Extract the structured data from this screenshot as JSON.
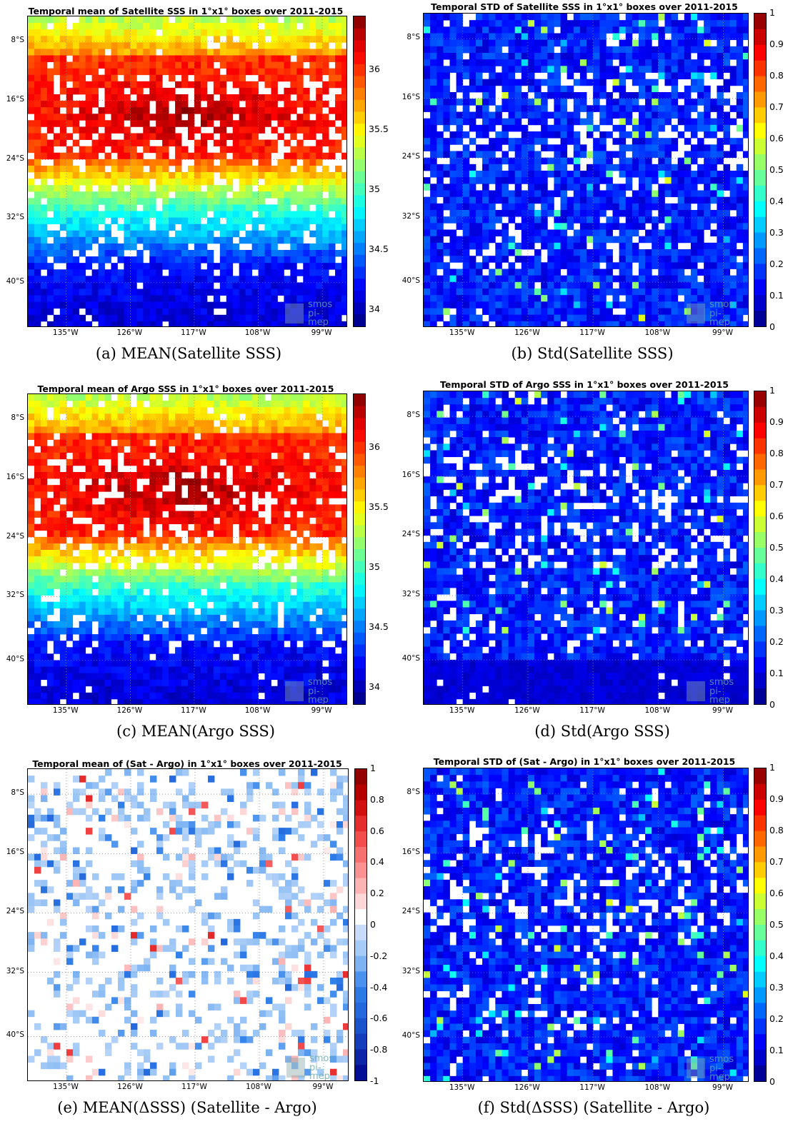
{
  "chart_data": [
    {
      "id": "a",
      "type": "heatmap",
      "title": "Temporal mean of Satellite SSS in 1°x1° boxes over 2011-2015",
      "caption": "(a) MEAN(Satellite SSS)",
      "colorbar_ticks": [
        "36",
        "35.5",
        "35",
        "34.5",
        "34"
      ],
      "x_ticks": [
        "135°W",
        "126°W",
        "117°W",
        "108°W",
        "99°W"
      ],
      "y_ticks": [
        "8°S",
        "16°S",
        "24°S",
        "32°S",
        "40°S"
      ],
      "clim": [
        33.85,
        36.45
      ],
      "colormap": "jet",
      "watermark": [
        "smos",
        "pi-mep"
      ]
    },
    {
      "id": "b",
      "type": "heatmap",
      "title": "Temporal STD of Satellite SSS in 1°x1° boxes over 2011-2015",
      "caption": "(b) Std(Satellite SSS)",
      "colorbar_ticks": [
        "1",
        "0.9",
        "0.8",
        "0.7",
        "0.6",
        "0.5",
        "0.4",
        "0.3",
        "0.2",
        "0.1",
        "0"
      ],
      "x_ticks": [
        "135°W",
        "126°W",
        "117°W",
        "108°W",
        "99°W"
      ],
      "y_ticks": [
        "8°S",
        "16°S",
        "24°S",
        "32°S",
        "40°S"
      ],
      "clim": [
        0,
        1
      ],
      "colormap": "jet",
      "watermark": [
        "smos",
        "pi-mep"
      ]
    },
    {
      "id": "c",
      "type": "heatmap",
      "title": "Temporal mean of Argo SSS in 1°x1° boxes over 2011-2015",
      "caption": "(c) MEAN(Argo SSS)",
      "colorbar_ticks": [
        "36",
        "35.5",
        "35",
        "34.5",
        "34"
      ],
      "x_ticks": [
        "135°W",
        "126°W",
        "117°W",
        "108°W",
        "99°W"
      ],
      "y_ticks": [
        "8°S",
        "16°S",
        "24°S",
        "32°S",
        "40°S"
      ],
      "clim": [
        33.85,
        36.45
      ],
      "colormap": "jet",
      "watermark": [
        "smos",
        "pi-mep"
      ]
    },
    {
      "id": "d",
      "type": "heatmap",
      "title": "Temporal STD of Argo SSS in 1°x1° boxes over 2011-2015",
      "caption": "(d) Std(Argo SSS)",
      "colorbar_ticks": [
        "1",
        "0.9",
        "0.8",
        "0.7",
        "0.6",
        "0.5",
        "0.4",
        "0.3",
        "0.2",
        "0.1",
        "0"
      ],
      "x_ticks": [
        "135°W",
        "126°W",
        "117°W",
        "108°W",
        "99°W"
      ],
      "y_ticks": [
        "8°S",
        "16°S",
        "24°S",
        "32°S",
        "40°S"
      ],
      "clim": [
        0,
        1
      ],
      "colormap": "jet",
      "watermark": [
        "smos",
        "pi-mep"
      ]
    },
    {
      "id": "e",
      "type": "heatmap",
      "title": "Temporal mean of (Sat - Argo) in 1°x1° boxes over 2011-2015",
      "caption": "(e) MEAN(ΔSSS) (Satellite - Argo)",
      "colorbar_ticks": [
        "1",
        "0.8",
        "0.6",
        "0.4",
        "0.2",
        "0",
        "-0.2",
        "-0.4",
        "-0.6",
        "-0.8",
        "-1"
      ],
      "x_ticks": [
        "135°W",
        "126°W",
        "117°W",
        "108°W",
        "99°W"
      ],
      "y_ticks": [
        "8°S",
        "16°S",
        "24°S",
        "32°S",
        "40°S"
      ],
      "clim": [
        -1,
        1
      ],
      "colormap": "diverging-blue-white-red",
      "grid": true,
      "watermark": [
        "smos",
        "pi-mep"
      ]
    },
    {
      "id": "f",
      "type": "heatmap",
      "title": "Temporal STD of (Sat - Argo) in 1°x1° boxes over 2011-2015",
      "caption": "(f) Std(ΔSSS) (Satellite - Argo)",
      "colorbar_ticks": [
        "1",
        "0.9",
        "0.8",
        "0.7",
        "0.6",
        "0.5",
        "0.4",
        "0.3",
        "0.2",
        "0.1",
        "0"
      ],
      "x_ticks": [
        "135°W",
        "126°W",
        "117°W",
        "108°W",
        "99°W"
      ],
      "y_ticks": [
        "8°S",
        "16°S",
        "24°S",
        "32°S",
        "40°S"
      ],
      "clim": [
        0,
        1
      ],
      "colormap": "jet",
      "watermark": [
        "smos",
        "pi-mep"
      ]
    }
  ]
}
